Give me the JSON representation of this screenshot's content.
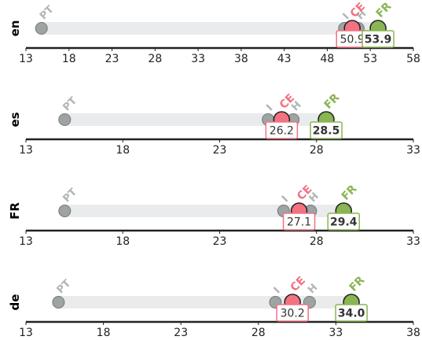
{
  "chart_data": [
    {
      "type": "dot-range",
      "panel_label": "en",
      "xlim": [
        13,
        58
      ],
      "ticks": [
        13,
        18,
        23,
        28,
        33,
        38,
        43,
        48,
        53,
        58
      ],
      "points": [
        {
          "label": "PT",
          "x": 14.8
        },
        {
          "label": "I",
          "x": 50.0
        },
        {
          "label": "CE",
          "x": 50.9,
          "value_label": "50.9"
        },
        {
          "label": "H",
          "x": 51.6
        },
        {
          "label": "FR",
          "x": 53.9,
          "value_label": "53.9"
        }
      ]
    },
    {
      "type": "dot-range",
      "panel_label": "es",
      "xlim": [
        13,
        33
      ],
      "ticks": [
        13,
        18,
        23,
        28,
        33
      ],
      "points": [
        {
          "label": "PT",
          "x": 15.0
        },
        {
          "label": "I",
          "x": 25.5
        },
        {
          "label": "CE",
          "x": 26.2,
          "value_label": "26.2"
        },
        {
          "label": "H",
          "x": 26.8
        },
        {
          "label": "FR",
          "x": 28.5,
          "value_label": "28.5"
        }
      ]
    },
    {
      "type": "dot-range",
      "panel_label": "FR",
      "xlim": [
        13,
        33
      ],
      "ticks": [
        13,
        18,
        23,
        28,
        33
      ],
      "points": [
        {
          "label": "PT",
          "x": 15.0
        },
        {
          "label": "I",
          "x": 26.3
        },
        {
          "label": "CE",
          "x": 27.1,
          "value_label": "27.1"
        },
        {
          "label": "H",
          "x": 27.7
        },
        {
          "label": "FR",
          "x": 29.4,
          "value_label": "29.4"
        }
      ]
    },
    {
      "type": "dot-range",
      "panel_label": "de",
      "xlim": [
        13,
        38
      ],
      "ticks": [
        13,
        18,
        23,
        28,
        33,
        38
      ],
      "points": [
        {
          "label": "PT",
          "x": 15.1
        },
        {
          "label": "I",
          "x": 29.1
        },
        {
          "label": "CE",
          "x": 30.2,
          "value_label": "30.2"
        },
        {
          "label": "H",
          "x": 31.3
        },
        {
          "label": "FR",
          "x": 34.0,
          "value_label": "34.0"
        }
      ]
    }
  ],
  "colors": {
    "PT": "#9ea3a3",
    "I": "#9ea3a3",
    "H": "#9ea3a3",
    "CE": "#f27281",
    "FR": "#8ab553",
    "band": "#e9ebec",
    "axis": "#222222",
    "value_text": "#333333"
  }
}
